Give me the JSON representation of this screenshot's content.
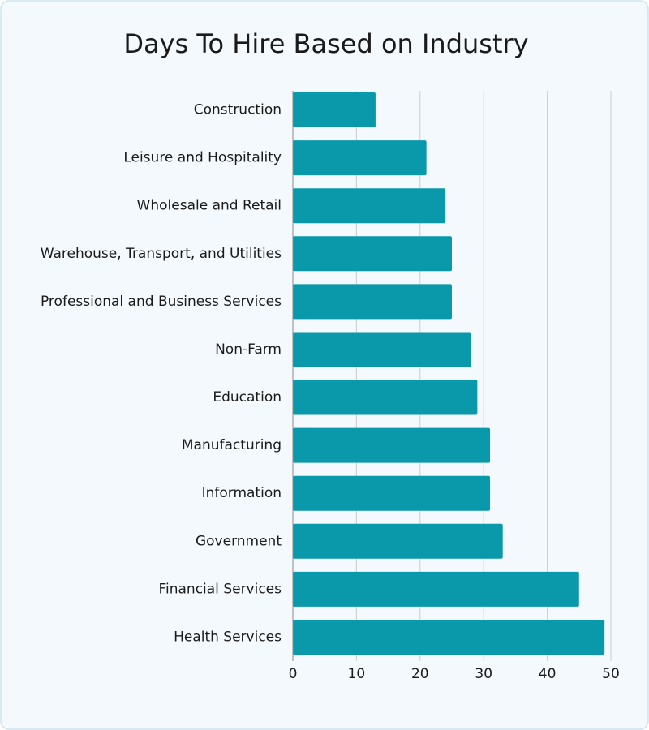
{
  "chart_data": {
    "type": "bar",
    "orientation": "horizontal",
    "title": "Days To Hire Based on Industry",
    "categories": [
      "Construction",
      "Leisure and Hospitality",
      "Wholesale and Retail",
      "Warehouse, Transport, and Utilities",
      "Professional and Business Services",
      "Non-Farm",
      "Education",
      "Manufacturing",
      "Information",
      "Government",
      "Financial Services",
      "Health Services"
    ],
    "values": [
      13,
      21,
      24,
      25,
      25,
      28,
      29,
      31,
      31,
      33,
      45,
      49
    ],
    "color": "#0a98ab",
    "xlim": [
      0,
      50
    ],
    "xticks": [
      0,
      10,
      20,
      30,
      40,
      50
    ],
    "grid": true
  }
}
